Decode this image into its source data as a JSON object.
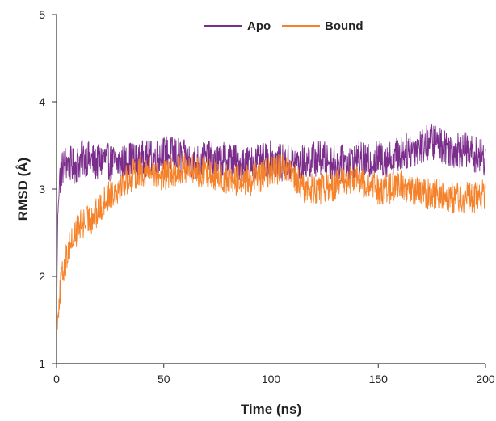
{
  "chart_data": {
    "type": "line",
    "xlabel": "Time (ns)",
    "ylabel": "RMSD (Å)",
    "xlim": [
      0,
      200
    ],
    "ylim": [
      1,
      5
    ],
    "x_ticks": [
      0,
      50,
      100,
      150,
      200
    ],
    "y_ticks": [
      1,
      2,
      3,
      4,
      5
    ],
    "grid": false,
    "legend_position": "top-center",
    "series": [
      {
        "name": "Apo",
        "color": "#7b2d8b",
        "x": [
          0,
          0.5,
          1,
          2,
          3,
          4,
          5,
          6,
          8,
          10,
          12,
          15,
          18,
          20,
          22,
          25,
          28,
          30,
          32,
          35,
          38,
          40,
          45,
          50,
          55,
          60,
          65,
          70,
          75,
          80,
          85,
          90,
          95,
          100,
          105,
          110,
          115,
          120,
          125,
          130,
          135,
          140,
          145,
          150,
          155,
          160,
          165,
          170,
          175,
          180,
          185,
          190,
          195,
          200
        ],
        "values": [
          1.3,
          2.6,
          3.0,
          3.2,
          3.25,
          3.3,
          3.3,
          3.3,
          3.25,
          3.3,
          3.35,
          3.35,
          3.3,
          3.3,
          3.35,
          3.3,
          3.3,
          3.3,
          3.3,
          3.35,
          3.3,
          3.35,
          3.35,
          3.4,
          3.4,
          3.35,
          3.3,
          3.35,
          3.3,
          3.35,
          3.3,
          3.3,
          3.3,
          3.35,
          3.3,
          3.3,
          3.3,
          3.35,
          3.35,
          3.3,
          3.3,
          3.35,
          3.3,
          3.35,
          3.35,
          3.4,
          3.45,
          3.5,
          3.55,
          3.5,
          3.45,
          3.45,
          3.4,
          3.35
        ]
      },
      {
        "name": "Bound",
        "color": "#f5822a",
        "x": [
          0,
          0.5,
          1,
          2,
          3,
          4,
          5,
          6,
          8,
          10,
          12,
          15,
          18,
          20,
          22,
          25,
          28,
          30,
          32,
          35,
          38,
          40,
          45,
          50,
          55,
          60,
          65,
          70,
          75,
          80,
          85,
          90,
          95,
          100,
          105,
          110,
          115,
          120,
          125,
          130,
          135,
          140,
          145,
          150,
          155,
          160,
          165,
          170,
          175,
          180,
          185,
          190,
          195,
          200
        ],
        "values": [
          1.2,
          1.5,
          1.7,
          1.9,
          2.05,
          2.15,
          2.25,
          2.35,
          2.45,
          2.55,
          2.6,
          2.65,
          2.7,
          2.75,
          2.85,
          2.95,
          3.0,
          3.05,
          3.1,
          3.15,
          3.2,
          3.2,
          3.2,
          3.15,
          3.2,
          3.25,
          3.2,
          3.2,
          3.15,
          3.1,
          3.1,
          3.1,
          3.15,
          3.2,
          3.25,
          3.15,
          3.0,
          3.0,
          3.0,
          3.05,
          3.1,
          3.1,
          3.05,
          3.0,
          3.0,
          3.05,
          3.0,
          2.95,
          2.95,
          2.95,
          2.9,
          2.9,
          2.9,
          2.95
        ]
      }
    ]
  }
}
